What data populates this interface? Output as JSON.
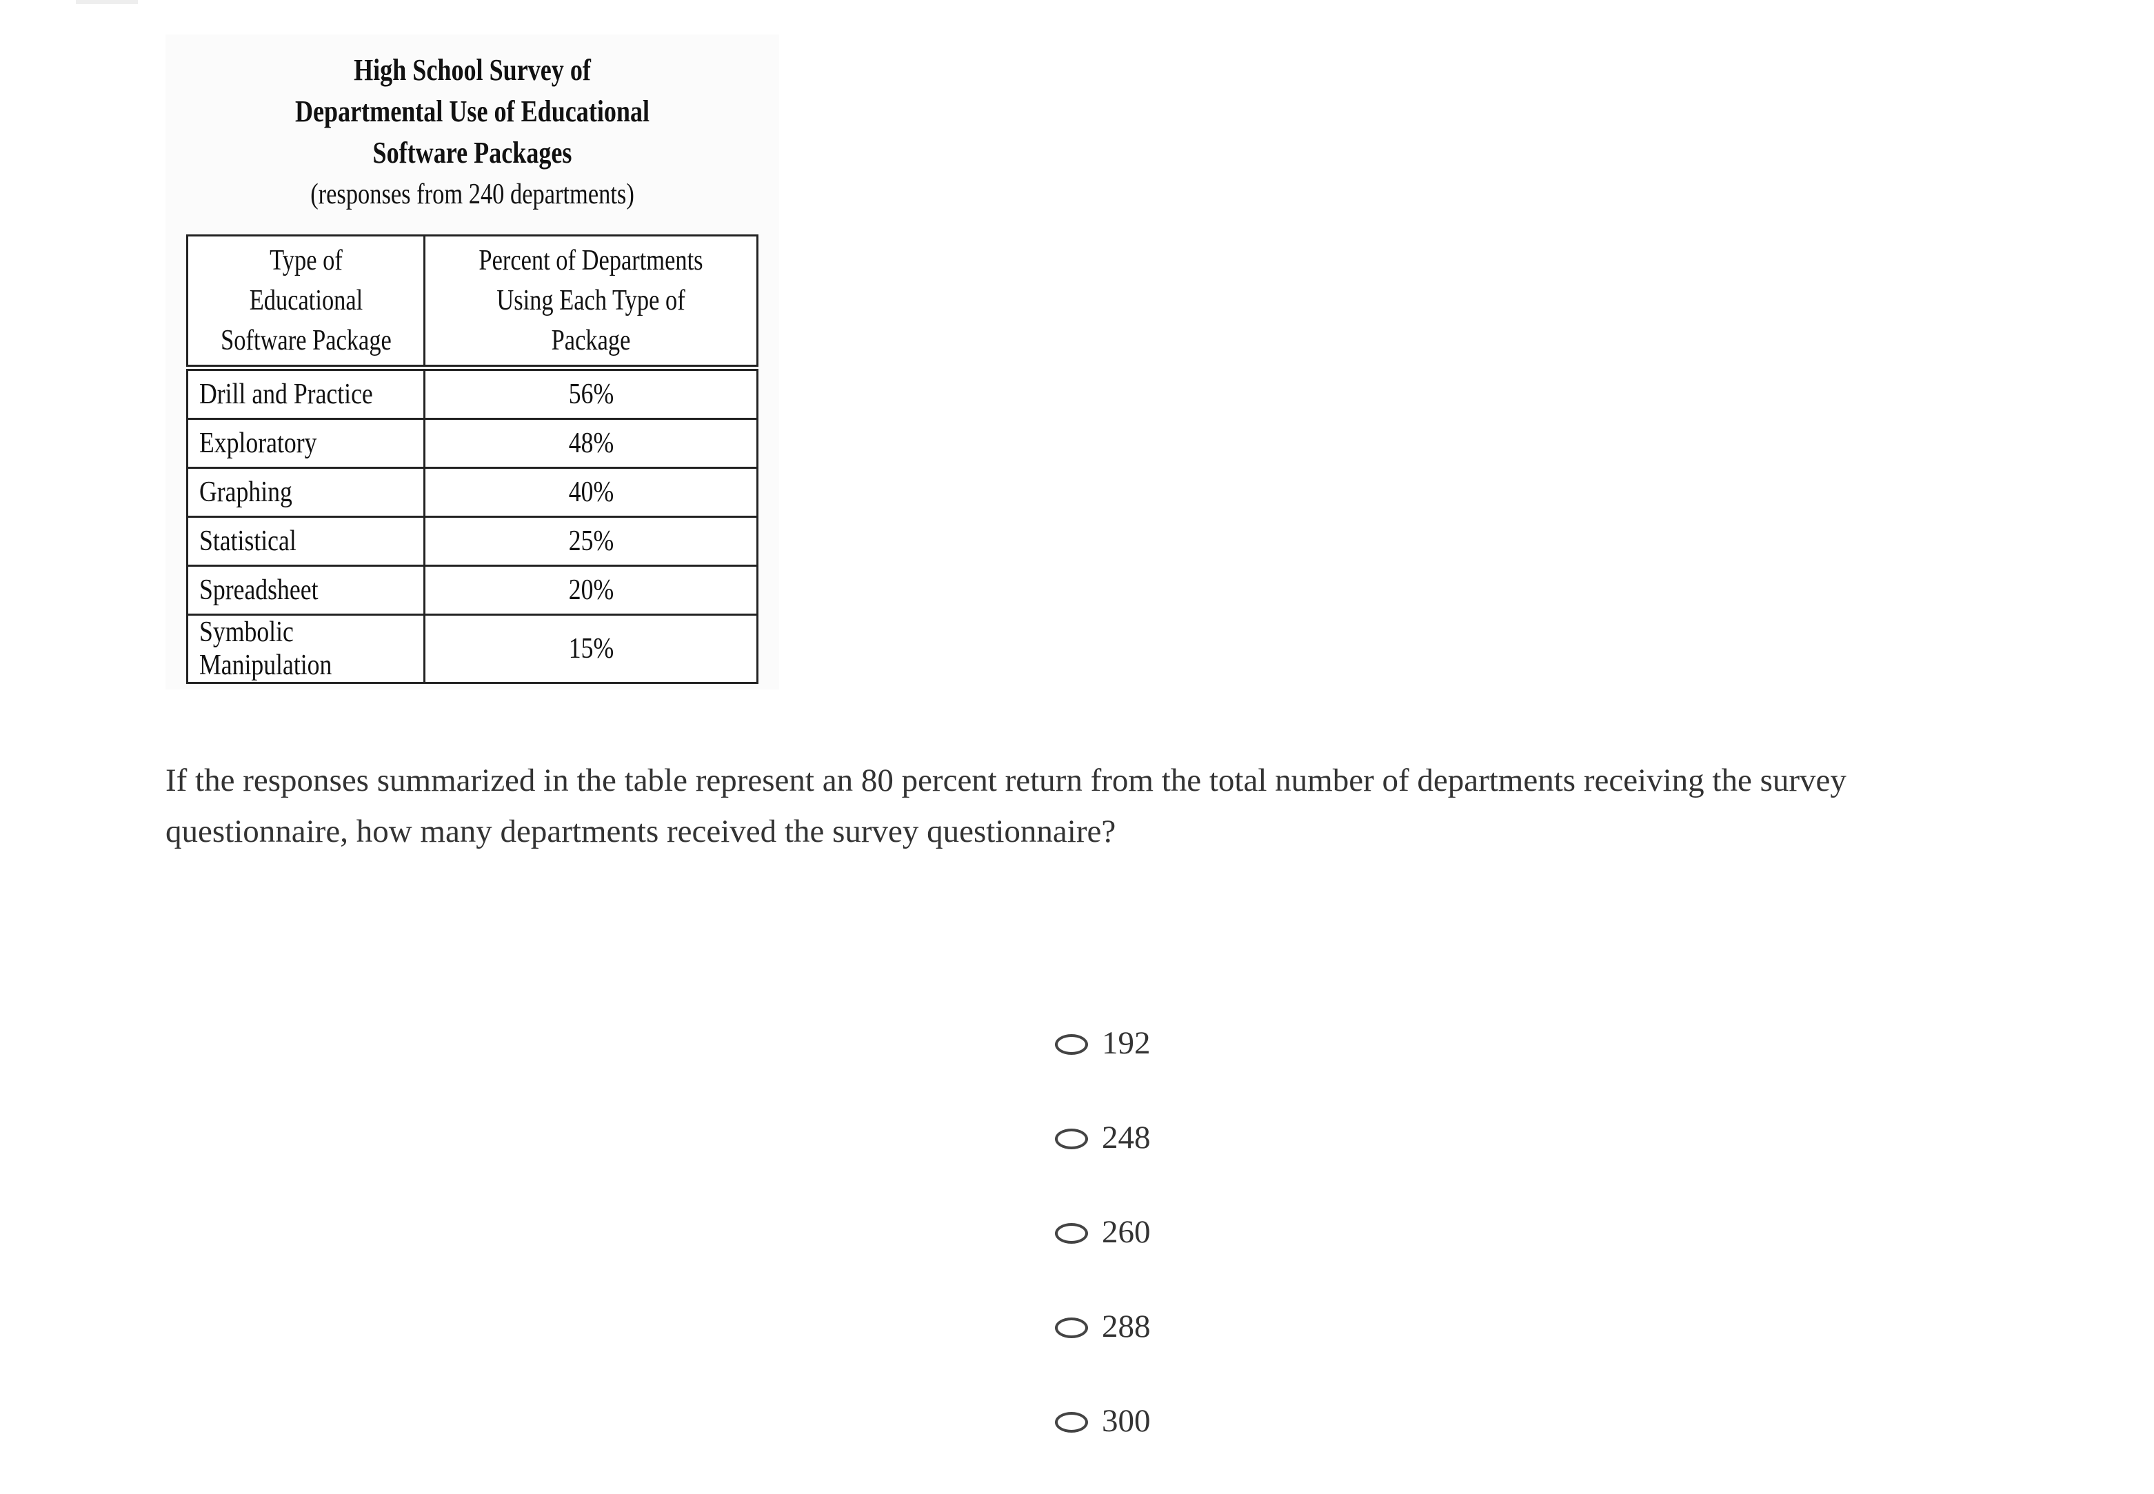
{
  "figure": {
    "title_lines": [
      "High School Survey of",
      "Departmental Use of Educational",
      "Software Packages"
    ],
    "subtitle": "(responses from 240 departments)",
    "table": {
      "headers": [
        "Type of Educational Software Package",
        "Percent of Departments Using Each Type of Package"
      ],
      "rows": [
        {
          "type": "Drill and Practice",
          "percent": "56%"
        },
        {
          "type": "Exploratory",
          "percent": "48%"
        },
        {
          "type": "Graphing",
          "percent": "40%"
        },
        {
          "type": "Statistical",
          "percent": "25%"
        },
        {
          "type": "Spreadsheet",
          "percent": "20%"
        },
        {
          "type": "Symbolic Manipulation",
          "percent": "15%"
        }
      ]
    }
  },
  "question": "If the responses summarized in the table represent an 80 percent return from the total number of departments receiving the survey questionnaire, how many departments received the survey questionnaire?",
  "options": [
    "192",
    "248",
    "260",
    "288",
    "300"
  ]
}
